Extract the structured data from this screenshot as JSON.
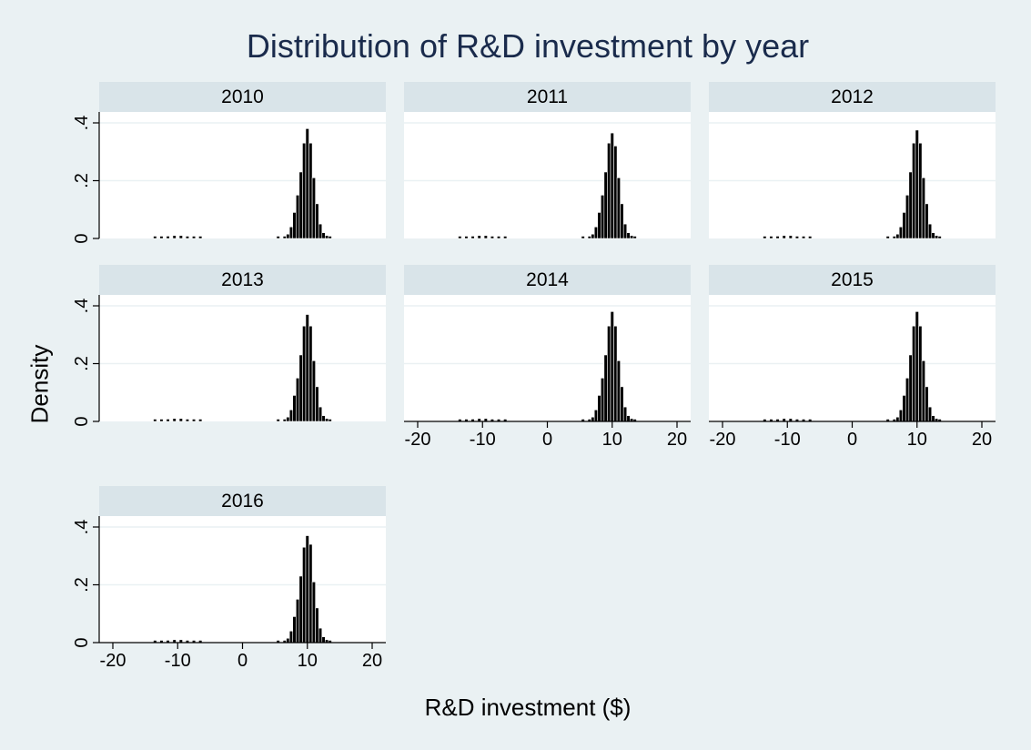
{
  "chart_data": {
    "type": "histogram",
    "title": "Distribution of R&D investment by year",
    "xlabel": "R&D investment ($)",
    "ylabel": "Density",
    "xlim": [
      -22,
      22
    ],
    "ylim": [
      0,
      0.4
    ],
    "x_ticks": [
      "-20",
      "-10",
      "0",
      "10",
      "20"
    ],
    "x_tick_values": [
      -20,
      -10,
      0,
      10,
      20
    ],
    "y_ticks": [
      "0",
      ".2",
      ".4"
    ],
    "y_tick_values": [
      0,
      0.2,
      0.4
    ],
    "panels": [
      {
        "label": "2010",
        "x_axis_shown": false,
        "y_axis_shown": true,
        "bins": [
          {
            "x": -13.5,
            "density": 0.004
          },
          {
            "x": -12.5,
            "density": 0.006
          },
          {
            "x": -11.5,
            "density": 0.008
          },
          {
            "x": -10.5,
            "density": 0.01
          },
          {
            "x": -9.5,
            "density": 0.01
          },
          {
            "x": -8.5,
            "density": 0.007
          },
          {
            "x": -7.5,
            "density": 0.005
          },
          {
            "x": -6.5,
            "density": 0.004
          },
          {
            "x": 5.5,
            "density": 0.003
          },
          {
            "x": 6.5,
            "density": 0.006
          },
          {
            "x": 7,
            "density": 0.015
          },
          {
            "x": 7.5,
            "density": 0.04
          },
          {
            "x": 8,
            "density": 0.09
          },
          {
            "x": 8.5,
            "density": 0.15
          },
          {
            "x": 9,
            "density": 0.23
          },
          {
            "x": 9.5,
            "density": 0.33
          },
          {
            "x": 10,
            "density": 0.38
          },
          {
            "x": 10.5,
            "density": 0.33
          },
          {
            "x": 11,
            "density": 0.21
          },
          {
            "x": 11.5,
            "density": 0.12
          },
          {
            "x": 12,
            "density": 0.05
          },
          {
            "x": 12.5,
            "density": 0.02
          },
          {
            "x": 13,
            "density": 0.01
          },
          {
            "x": 13.5,
            "density": 0.005
          }
        ]
      },
      {
        "label": "2011",
        "x_axis_shown": false,
        "y_axis_shown": false,
        "bins": [
          {
            "x": -13.5,
            "density": 0.004
          },
          {
            "x": -12.5,
            "density": 0.006
          },
          {
            "x": -11.5,
            "density": 0.008
          },
          {
            "x": -10.5,
            "density": 0.01
          },
          {
            "x": -9.5,
            "density": 0.01
          },
          {
            "x": -8.5,
            "density": 0.007
          },
          {
            "x": -7.5,
            "density": 0.005
          },
          {
            "x": -6.5,
            "density": 0.004
          },
          {
            "x": 5.5,
            "density": 0.003
          },
          {
            "x": 6.5,
            "density": 0.006
          },
          {
            "x": 7,
            "density": 0.015
          },
          {
            "x": 7.5,
            "density": 0.04
          },
          {
            "x": 8,
            "density": 0.09
          },
          {
            "x": 8.5,
            "density": 0.15
          },
          {
            "x": 9,
            "density": 0.23
          },
          {
            "x": 9.5,
            "density": 0.33
          },
          {
            "x": 10,
            "density": 0.365
          },
          {
            "x": 10.5,
            "density": 0.32
          },
          {
            "x": 11,
            "density": 0.21
          },
          {
            "x": 11.5,
            "density": 0.12
          },
          {
            "x": 12,
            "density": 0.05
          },
          {
            "x": 12.5,
            "density": 0.02
          },
          {
            "x": 13,
            "density": 0.01
          },
          {
            "x": 13.5,
            "density": 0.005
          }
        ]
      },
      {
        "label": "2012",
        "x_axis_shown": false,
        "y_axis_shown": false,
        "bins": [
          {
            "x": -13.5,
            "density": 0.004
          },
          {
            "x": -12.5,
            "density": 0.006
          },
          {
            "x": -11.5,
            "density": 0.008
          },
          {
            "x": -10.5,
            "density": 0.01
          },
          {
            "x": -9.5,
            "density": 0.01
          },
          {
            "x": -8.5,
            "density": 0.007
          },
          {
            "x": -7.5,
            "density": 0.005
          },
          {
            "x": -6.5,
            "density": 0.004
          },
          {
            "x": 5.5,
            "density": 0.003
          },
          {
            "x": 6.5,
            "density": 0.006
          },
          {
            "x": 7,
            "density": 0.015
          },
          {
            "x": 7.5,
            "density": 0.04
          },
          {
            "x": 8,
            "density": 0.09
          },
          {
            "x": 8.5,
            "density": 0.15
          },
          {
            "x": 9,
            "density": 0.23
          },
          {
            "x": 9.5,
            "density": 0.33
          },
          {
            "x": 10,
            "density": 0.375
          },
          {
            "x": 10.5,
            "density": 0.33
          },
          {
            "x": 11,
            "density": 0.21
          },
          {
            "x": 11.5,
            "density": 0.12
          },
          {
            "x": 12,
            "density": 0.05
          },
          {
            "x": 12.5,
            "density": 0.02
          },
          {
            "x": 13,
            "density": 0.01
          },
          {
            "x": 13.5,
            "density": 0.005
          }
        ]
      },
      {
        "label": "2013",
        "x_axis_shown": false,
        "y_axis_shown": true,
        "bins": [
          {
            "x": -13.5,
            "density": 0.004
          },
          {
            "x": -12.5,
            "density": 0.006
          },
          {
            "x": -11.5,
            "density": 0.008
          },
          {
            "x": -10.5,
            "density": 0.01
          },
          {
            "x": -9.5,
            "density": 0.01
          },
          {
            "x": -8.5,
            "density": 0.007
          },
          {
            "x": -7.5,
            "density": 0.005
          },
          {
            "x": -6.5,
            "density": 0.004
          },
          {
            "x": 5.5,
            "density": 0.003
          },
          {
            "x": 6.5,
            "density": 0.006
          },
          {
            "x": 7,
            "density": 0.015
          },
          {
            "x": 7.5,
            "density": 0.04
          },
          {
            "x": 8,
            "density": 0.09
          },
          {
            "x": 8.5,
            "density": 0.15
          },
          {
            "x": 9,
            "density": 0.23
          },
          {
            "x": 9.5,
            "density": 0.33
          },
          {
            "x": 10,
            "density": 0.37
          },
          {
            "x": 10.5,
            "density": 0.33
          },
          {
            "x": 11,
            "density": 0.21
          },
          {
            "x": 11.5,
            "density": 0.12
          },
          {
            "x": 12,
            "density": 0.05
          },
          {
            "x": 12.5,
            "density": 0.02
          },
          {
            "x": 13,
            "density": 0.01
          },
          {
            "x": 13.5,
            "density": 0.005
          }
        ]
      },
      {
        "label": "2014",
        "x_axis_shown": true,
        "y_axis_shown": false,
        "bins": [
          {
            "x": -13.5,
            "density": 0.004
          },
          {
            "x": -12.5,
            "density": 0.006
          },
          {
            "x": -11.5,
            "density": 0.008
          },
          {
            "x": -10.5,
            "density": 0.01
          },
          {
            "x": -9.5,
            "density": 0.01
          },
          {
            "x": -8.5,
            "density": 0.007
          },
          {
            "x": -7.5,
            "density": 0.005
          },
          {
            "x": -6.5,
            "density": 0.004
          },
          {
            "x": 5.5,
            "density": 0.003
          },
          {
            "x": 6.5,
            "density": 0.006
          },
          {
            "x": 7,
            "density": 0.015
          },
          {
            "x": 7.5,
            "density": 0.04
          },
          {
            "x": 8,
            "density": 0.09
          },
          {
            "x": 8.5,
            "density": 0.15
          },
          {
            "x": 9,
            "density": 0.23
          },
          {
            "x": 9.5,
            "density": 0.33
          },
          {
            "x": 10,
            "density": 0.38
          },
          {
            "x": 10.5,
            "density": 0.33
          },
          {
            "x": 11,
            "density": 0.21
          },
          {
            "x": 11.5,
            "density": 0.12
          },
          {
            "x": 12,
            "density": 0.05
          },
          {
            "x": 12.5,
            "density": 0.02
          },
          {
            "x": 13,
            "density": 0.01
          },
          {
            "x": 13.5,
            "density": 0.005
          }
        ]
      },
      {
        "label": "2015",
        "x_axis_shown": true,
        "y_axis_shown": false,
        "bins": [
          {
            "x": -13.5,
            "density": 0.004
          },
          {
            "x": -12.5,
            "density": 0.006
          },
          {
            "x": -11.5,
            "density": 0.008
          },
          {
            "x": -10.5,
            "density": 0.01
          },
          {
            "x": -9.5,
            "density": 0.01
          },
          {
            "x": -8.5,
            "density": 0.007
          },
          {
            "x": -7.5,
            "density": 0.005
          },
          {
            "x": -6.5,
            "density": 0.004
          },
          {
            "x": 5.5,
            "density": 0.003
          },
          {
            "x": 6.5,
            "density": 0.006
          },
          {
            "x": 7,
            "density": 0.015
          },
          {
            "x": 7.5,
            "density": 0.04
          },
          {
            "x": 8,
            "density": 0.09
          },
          {
            "x": 8.5,
            "density": 0.15
          },
          {
            "x": 9,
            "density": 0.23
          },
          {
            "x": 9.5,
            "density": 0.33
          },
          {
            "x": 10,
            "density": 0.38
          },
          {
            "x": 10.5,
            "density": 0.33
          },
          {
            "x": 11,
            "density": 0.21
          },
          {
            "x": 11.5,
            "density": 0.12
          },
          {
            "x": 12,
            "density": 0.05
          },
          {
            "x": 12.5,
            "density": 0.02
          },
          {
            "x": 13,
            "density": 0.01
          },
          {
            "x": 13.5,
            "density": 0.005
          }
        ]
      },
      {
        "label": "2016",
        "x_axis_shown": true,
        "y_axis_shown": true,
        "bins": [
          {
            "x": -13.5,
            "density": 0.004
          },
          {
            "x": -12.5,
            "density": 0.006
          },
          {
            "x": -11.5,
            "density": 0.008
          },
          {
            "x": -10.5,
            "density": 0.01
          },
          {
            "x": -9.5,
            "density": 0.01
          },
          {
            "x": -8.5,
            "density": 0.007
          },
          {
            "x": -7.5,
            "density": 0.005
          },
          {
            "x": -6.5,
            "density": 0.004
          },
          {
            "x": 5.5,
            "density": 0.003
          },
          {
            "x": 6.5,
            "density": 0.006
          },
          {
            "x": 7,
            "density": 0.015
          },
          {
            "x": 7.5,
            "density": 0.04
          },
          {
            "x": 8,
            "density": 0.09
          },
          {
            "x": 8.5,
            "density": 0.15
          },
          {
            "x": 9,
            "density": 0.23
          },
          {
            "x": 9.5,
            "density": 0.33
          },
          {
            "x": 10,
            "density": 0.37
          },
          {
            "x": 10.5,
            "density": 0.34
          },
          {
            "x": 11,
            "density": 0.21
          },
          {
            "x": 11.5,
            "density": 0.12
          },
          {
            "x": 12,
            "density": 0.05
          },
          {
            "x": 12.5,
            "density": 0.02
          },
          {
            "x": 13,
            "density": 0.01
          },
          {
            "x": 13.5,
            "density": 0.005
          }
        ]
      }
    ],
    "colors": {
      "background": "#eaf1f3",
      "plot_background": "#ffffff",
      "strip": "#d9e4e9",
      "title": "#1a2b4c",
      "bar_fill": "#000000",
      "bar_edge": "#ffffff",
      "grid": "#eaf1f3"
    }
  }
}
